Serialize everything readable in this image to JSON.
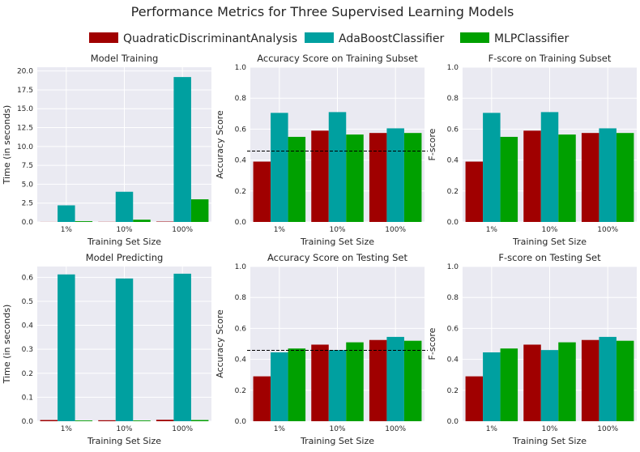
{
  "suptitle": "Performance Metrics for Three Supervised Learning Models",
  "legend": {
    "placement": "top-center",
    "entries": [
      {
        "name": "QuadraticDiscriminantAnalysis",
        "color": "#a00000"
      },
      {
        "name": "AdaBoostClassifier",
        "color": "#00a0a0"
      },
      {
        "name": "MLPClassifier",
        "color": "#00a000"
      }
    ]
  },
  "chart_data": [
    {
      "type": "bar",
      "title": "Model Training",
      "xlabel": "Training Set Size",
      "ylabel": "Time (in seconds)",
      "categories": [
        "1%",
        "10%",
        "100%"
      ],
      "ylim": [
        0,
        20.5
      ],
      "yticks": [
        "0.0",
        "2.5",
        "5.0",
        "7.5",
        "10.0",
        "12.5",
        "15.0",
        "17.5",
        "20.0"
      ],
      "ytick_values": [
        0,
        2.5,
        5,
        7.5,
        10,
        12.5,
        15,
        17.5,
        20
      ],
      "series": [
        {
          "name": "QuadraticDiscriminantAnalysis",
          "values": [
            0.01,
            0.02,
            0.05
          ]
        },
        {
          "name": "AdaBoostClassifier",
          "values": [
            2.2,
            4.0,
            19.2
          ]
        },
        {
          "name": "MLPClassifier",
          "values": [
            0.1,
            0.3,
            3.0
          ]
        }
      ],
      "grid": true
    },
    {
      "type": "bar",
      "title": "Accuracy Score on Training Subset",
      "xlabel": "Training Set Size",
      "ylabel": "Accuracy Score",
      "categories": [
        "1%",
        "10%",
        "100%"
      ],
      "ylim": [
        0,
        1.0
      ],
      "yticks": [
        "0.0",
        "0.2",
        "0.4",
        "0.6",
        "0.8",
        "1.0"
      ],
      "ytick_values": [
        0,
        0.2,
        0.4,
        0.6,
        0.8,
        1.0
      ],
      "series": [
        {
          "name": "QuadraticDiscriminantAnalysis",
          "values": [
            0.39,
            0.59,
            0.575
          ]
        },
        {
          "name": "AdaBoostClassifier",
          "values": [
            0.705,
            0.71,
            0.605
          ]
        },
        {
          "name": "MLPClassifier",
          "values": [
            0.55,
            0.565,
            0.575
          ]
        }
      ],
      "hline": 0.458,
      "grid": true
    },
    {
      "type": "bar",
      "title": "F-score on Training Subset",
      "xlabel": "Training Set Size",
      "ylabel": "F-score",
      "categories": [
        "1%",
        "10%",
        "100%"
      ],
      "ylim": [
        0,
        1.0
      ],
      "yticks": [
        "0.0",
        "0.2",
        "0.4",
        "0.6",
        "0.8",
        "1.0"
      ],
      "ytick_values": [
        0,
        0.2,
        0.4,
        0.6,
        0.8,
        1.0
      ],
      "series": [
        {
          "name": "QuadraticDiscriminantAnalysis",
          "values": [
            0.39,
            0.59,
            0.575
          ]
        },
        {
          "name": "AdaBoostClassifier",
          "values": [
            0.705,
            0.71,
            0.605
          ]
        },
        {
          "name": "MLPClassifier",
          "values": [
            0.55,
            0.565,
            0.575
          ]
        }
      ],
      "grid": true
    },
    {
      "type": "bar",
      "title": "Model Predicting",
      "xlabel": "Training Set Size",
      "ylabel": "Time (in seconds)",
      "categories": [
        "1%",
        "10%",
        "100%"
      ],
      "ylim": [
        0,
        0.645
      ],
      "yticks": [
        "0.0",
        "0.1",
        "0.2",
        "0.3",
        "0.4",
        "0.5",
        "0.6"
      ],
      "ytick_values": [
        0,
        0.1,
        0.2,
        0.3,
        0.4,
        0.5,
        0.6
      ],
      "series": [
        {
          "name": "QuadraticDiscriminantAnalysis",
          "values": [
            0.005,
            0.004,
            0.006
          ]
        },
        {
          "name": "AdaBoostClassifier",
          "values": [
            0.612,
            0.595,
            0.615
          ]
        },
        {
          "name": "MLPClassifier",
          "values": [
            0.003,
            0.003,
            0.005
          ]
        }
      ],
      "grid": true
    },
    {
      "type": "bar",
      "title": "Accuracy Score on Testing Set",
      "xlabel": "Training Set Size",
      "ylabel": "Accuracy Score",
      "categories": [
        "1%",
        "10%",
        "100%"
      ],
      "ylim": [
        0,
        1.0
      ],
      "yticks": [
        "0.0",
        "0.2",
        "0.4",
        "0.6",
        "0.8",
        "1.0"
      ],
      "ytick_values": [
        0,
        0.2,
        0.4,
        0.6,
        0.8,
        1.0
      ],
      "series": [
        {
          "name": "QuadraticDiscriminantAnalysis",
          "values": [
            0.29,
            0.495,
            0.525
          ]
        },
        {
          "name": "AdaBoostClassifier",
          "values": [
            0.445,
            0.46,
            0.545
          ]
        },
        {
          "name": "MLPClassifier",
          "values": [
            0.47,
            0.51,
            0.52
          ]
        }
      ],
      "hline": 0.458,
      "grid": true
    },
    {
      "type": "bar",
      "title": "F-score on Testing Set",
      "xlabel": "Training Set Size",
      "ylabel": "F-score",
      "categories": [
        "1%",
        "10%",
        "100%"
      ],
      "ylim": [
        0,
        1.0
      ],
      "yticks": [
        "0.0",
        "0.2",
        "0.4",
        "0.6",
        "0.8",
        "1.0"
      ],
      "ytick_values": [
        0,
        0.2,
        0.4,
        0.6,
        0.8,
        1.0
      ],
      "series": [
        {
          "name": "QuadraticDiscriminantAnalysis",
          "values": [
            0.29,
            0.495,
            0.525
          ]
        },
        {
          "name": "AdaBoostClassifier",
          "values": [
            0.445,
            0.46,
            0.545
          ]
        },
        {
          "name": "MLPClassifier",
          "values": [
            0.47,
            0.51,
            0.52
          ]
        }
      ],
      "grid": true
    }
  ]
}
